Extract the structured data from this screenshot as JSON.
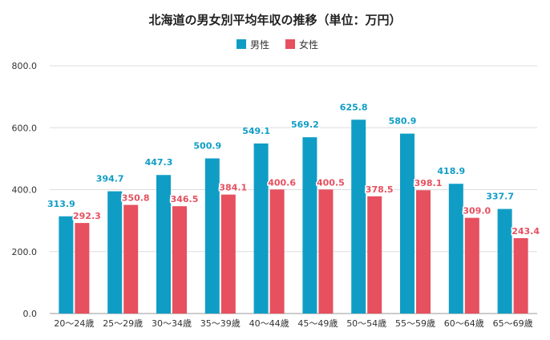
{
  "chart_data": {
    "type": "bar",
    "title": "北海道の男女別平均年収の推移（単位：万円）",
    "categories": [
      "20～24歳",
      "25～29歳",
      "30～34歳",
      "35～39歳",
      "40～44歳",
      "45～49歳",
      "50～54歳",
      "55～59歳",
      "60～64歳",
      "65～69歳"
    ],
    "series": [
      {
        "name": "男性",
        "color": "#109DC5",
        "values": [
          313.9,
          394.7,
          447.3,
          500.9,
          549.1,
          569.2,
          625.8,
          580.9,
          418.9,
          337.7
        ]
      },
      {
        "name": "女性",
        "color": "#E6505F",
        "values": [
          292.3,
          350.8,
          346.5,
          384.1,
          400.6,
          400.5,
          378.5,
          398.1,
          309.0,
          243.4
        ]
      }
    ],
    "ylim": [
      0,
      800
    ],
    "yticks": [
      0,
      200,
      400,
      600,
      800
    ],
    "ytick_labels": [
      "0.0",
      "200.0",
      "400.0",
      "600.0",
      "800.0"
    ],
    "grid": true,
    "legend": "top-center",
    "gridColor": "#dddddd"
  }
}
